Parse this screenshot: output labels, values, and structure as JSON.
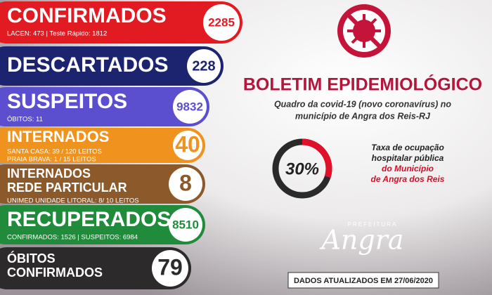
{
  "rows": [
    {
      "title": [
        "CONFIRMADOS"
      ],
      "badge": "2285",
      "lines": [
        "LACEN: 473 | Teste Rápido: 1812"
      ]
    },
    {
      "title": [
        "DESCARTADOS"
      ],
      "badge": "228",
      "lines": []
    },
    {
      "title": [
        "SUSPEITOS"
      ],
      "badge": "9832",
      "lines": [
        "ÓBITOS: 11"
      ]
    },
    {
      "title": [
        "INTERNADOS"
      ],
      "badge": "40",
      "lines": [
        "SANTA CASA: 39 / 120 LEITOS",
        "PRAIA BRAVA: 1 / 15 LEITOS"
      ]
    },
    {
      "title": [
        "INTERNADOS",
        "REDE PARTICULAR"
      ],
      "badge": "8",
      "lines": [
        "UNIMED UNIDADE LITORAL: 8/ 10 LEITOS"
      ]
    },
    {
      "title": [
        "RECUPERADOS"
      ],
      "badge": "8510",
      "lines": [
        "CONFIRMADOS: 1526 | SUSPEITOS: 6984"
      ]
    },
    {
      "title": [
        "ÓBITOS",
        "CONFIRMADOS"
      ],
      "badge": "79",
      "lines": []
    }
  ],
  "header": {
    "title": "BOLETIM EPIDEMIOLÓGICO",
    "subtitle": [
      "Quadro da covid-19 (novo coronavírus) no",
      "município de Angra dos Reis-RJ"
    ]
  },
  "gauge": {
    "value": 30,
    "label": "30%",
    "max": 100,
    "caption": [
      "Taxa de ocupação",
      "hospitalar pública",
      "do Município",
      "de Angra dos Reis"
    ]
  },
  "logo": {
    "top": "PREFEITURA",
    "name": "Angra"
  },
  "footer": "DADOS ATUALIZADOS EM 27/06/2020"
}
